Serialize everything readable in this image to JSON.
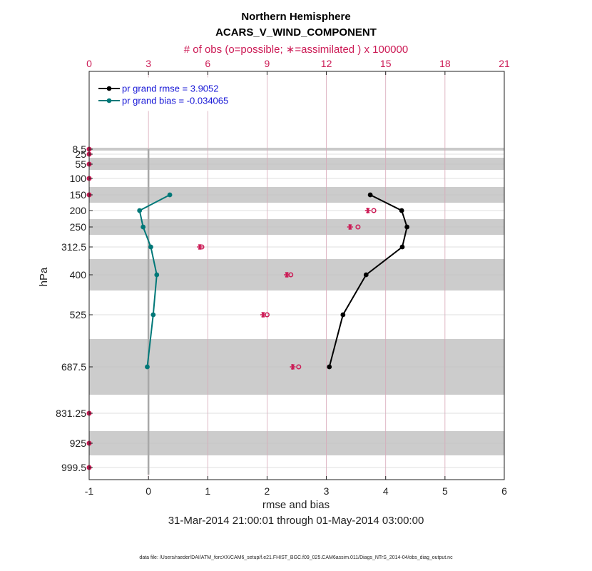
{
  "chart_data": {
    "type": "line",
    "title": "Northern Hemisphere",
    "subtitle": "ACARS_V_WIND_COMPONENT",
    "top_axis_label": "# of obs (o=possible; ∗=assimilated ) x 100000",
    "xlabel": "rmse and bias",
    "ylabel": "hPa",
    "date_range": "31-Mar-2014 21:00:01 through 01-May-2014 03:00:00",
    "footer": "data file: /Users/raeder/DAI/ATM_forcXX/CAM6_setup/f.e21.FHIST_BGC.f09_025.CAM6assim.011/Diags_NTrS_2014-04/obs_diag_output.nc",
    "xlim": [
      -1,
      6
    ],
    "x_ticks": [
      "-1",
      "0",
      "1",
      "2",
      "3",
      "4",
      "5",
      "6"
    ],
    "top_xlim": [
      0,
      21
    ],
    "top_ticks": [
      "0",
      "3",
      "6",
      "9",
      "12",
      "15",
      "18",
      "21"
    ],
    "levels": [
      8.5,
      25,
      55,
      100,
      150,
      200,
      250,
      312.5,
      400,
      525,
      687.5,
      831.25,
      925,
      999.5
    ],
    "level_labels": [
      "8.5",
      "25",
      "55",
      "100",
      "150",
      "200",
      "250",
      "312.5",
      "400",
      "525",
      "687.5",
      "831.25",
      "925",
      "999.5"
    ],
    "series": [
      {
        "name": "rmse",
        "legend": "pr grand rmse = 3.9052",
        "color": "#000000",
        "levels": [
          150,
          200,
          250,
          312.5,
          400,
          525,
          687.5
        ],
        "values": [
          3.74,
          4.27,
          4.36,
          4.28,
          3.67,
          3.28,
          3.05
        ]
      },
      {
        "name": "bias",
        "legend": "pr grand bias = -0.034065",
        "color": "#007878",
        "levels": [
          150,
          200,
          250,
          312.5,
          400,
          525,
          687.5
        ],
        "values": [
          0.36,
          -0.15,
          -0.09,
          0.04,
          0.14,
          0.08,
          -0.02
        ]
      }
    ],
    "obs_counts_x1e5": {
      "levels": [
        8.5,
        25,
        55,
        100,
        150,
        200,
        250,
        312.5,
        400,
        525,
        687.5,
        831.25,
        925,
        999.5
      ],
      "possible": [
        0,
        0,
        0,
        0,
        0,
        14.4,
        13.6,
        5.7,
        10.2,
        9.0,
        10.6,
        0,
        0,
        0
      ],
      "assimilated": [
        0,
        0,
        0,
        0,
        0,
        14.1,
        13.2,
        5.6,
        10.0,
        8.8,
        10.3,
        0,
        0,
        0
      ]
    },
    "colors": {
      "obs_marker": "#cc1a55",
      "band": "#cccccc",
      "grid_pink": "#d8a7b8",
      "zero_line": "#a8a8a8"
    }
  }
}
